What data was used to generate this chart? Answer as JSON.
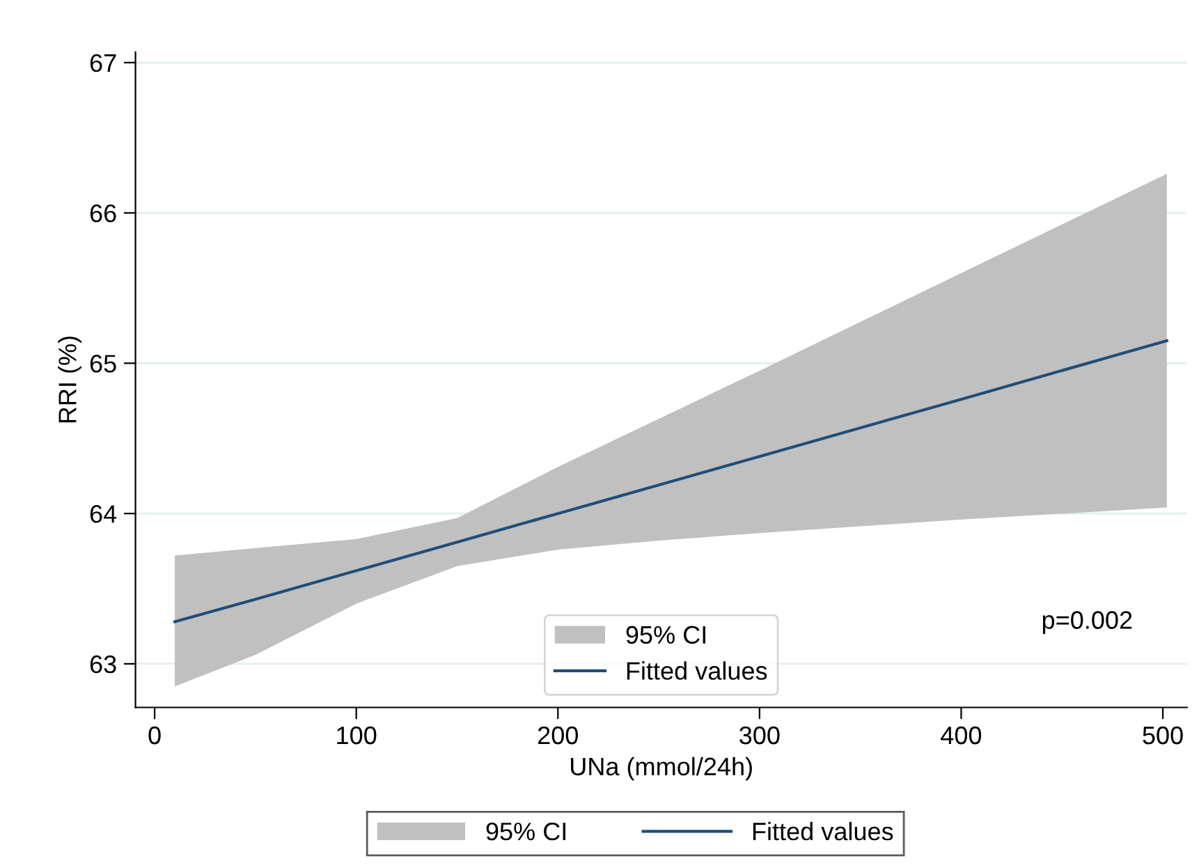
{
  "chart_data": {
    "type": "line",
    "xlabel": "UNa (mmol/24h)",
    "ylabel": "RRI (%)",
    "xlim": [
      -9.5,
      512
    ],
    "xticks": [
      0,
      100,
      200,
      300,
      400,
      500
    ],
    "ylim": [
      62.71,
      67.07
    ],
    "yticks": [
      63,
      64,
      65,
      66,
      67
    ],
    "grid": "y",
    "legend": "bottom",
    "annotations": [
      "p=0.002",
      "95% CI"
    ],
    "series": [
      {
        "name": "Fitted values",
        "color": "#1f4e79",
        "x": [
          10,
          50,
          100,
          150,
          200,
          250,
          300,
          400,
          502
        ],
        "values": [
          63.28,
          63.43,
          63.62,
          63.81,
          64.0,
          64.19,
          64.38,
          64.76,
          65.15
        ],
        "lower": [
          62.85,
          63.06,
          63.4,
          63.65,
          63.76,
          63.82,
          63.87,
          63.96,
          64.04
        ],
        "upper": [
          63.72,
          63.77,
          63.83,
          63.97,
          64.31,
          64.63,
          64.95,
          65.6,
          66.26
        ]
      }
    ]
  }
}
